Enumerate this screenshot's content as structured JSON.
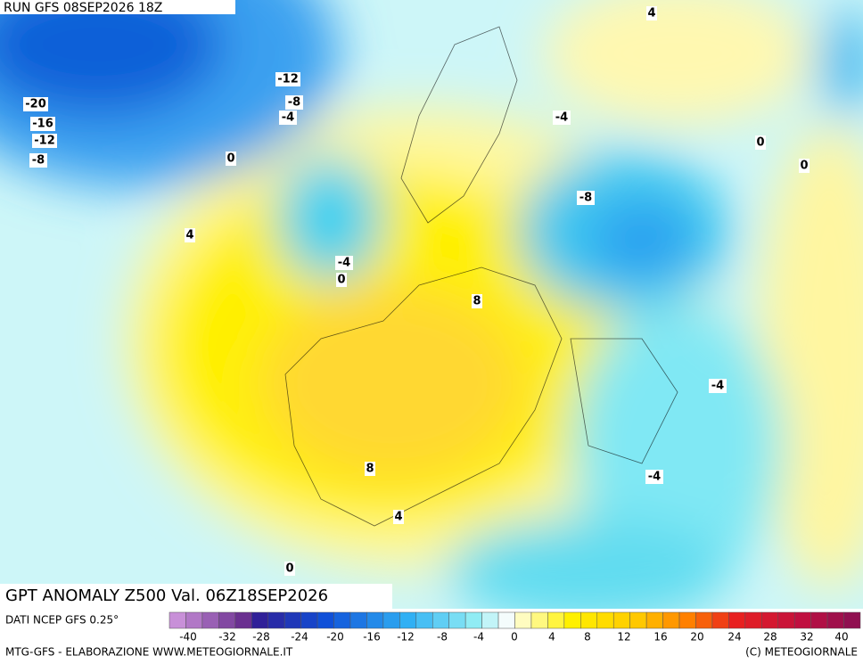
{
  "header": {
    "run": "RUN GFS 08SEP2026 18Z"
  },
  "map": {
    "contour_labels": [
      "4",
      "-12",
      "-20",
      "-8",
      "-16",
      "-4",
      "-4",
      "-12",
      "0",
      "-8",
      "0",
      "0",
      "-8",
      "4",
      "-4",
      "0",
      "8",
      "-4",
      "-4",
      "8",
      "4",
      "0"
    ]
  },
  "title": "GPT ANOMALY Z500 Val. 06Z18SEP2026",
  "colorbar": {
    "source": "DATI NCEP GFS 0.25°",
    "labels": [
      "-40",
      "-32",
      "-28",
      "-24",
      "-20",
      "-16",
      "-12",
      "-8",
      "-4",
      "0",
      "4",
      "8",
      "12",
      "16",
      "20",
      "24",
      "28",
      "32",
      "40"
    ]
  },
  "footer": {
    "left": "MTG-GFS - ELABORAZIONE WWW.METEOGIORNALE.IT",
    "right": "(C) METEOGIORNALE"
  }
}
